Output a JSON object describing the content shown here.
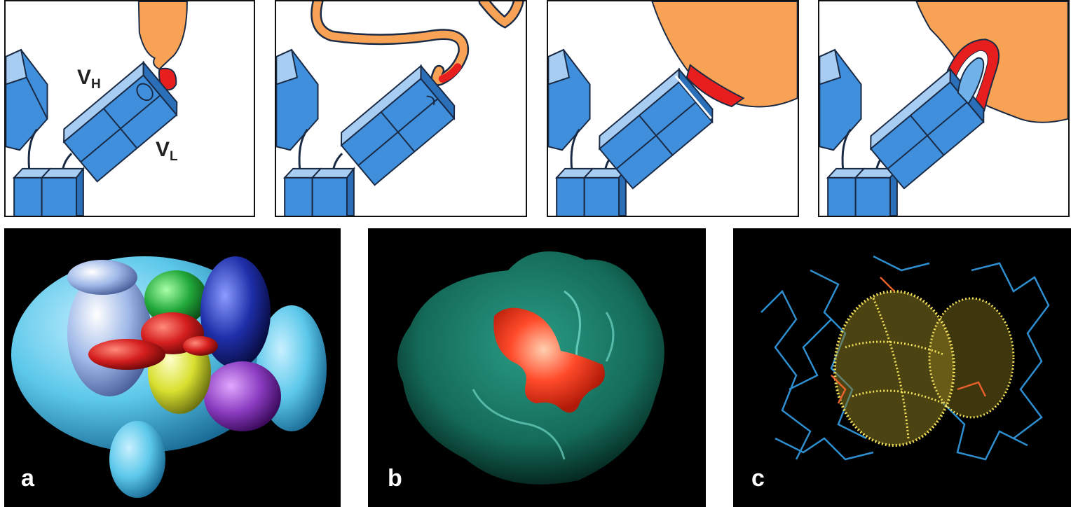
{
  "top_row": {
    "panels": [
      {
        "name": "antibody-bound-small-loop"
      },
      {
        "name": "antibody-bound-peptide"
      },
      {
        "name": "antibody-bound-surface"
      },
      {
        "name": "antibody-bound-pocket"
      }
    ],
    "labels": {
      "vh_main": "V",
      "vh_sub": "H",
      "vl_main": "V",
      "vl_sub": "L"
    }
  },
  "bottom_row": {
    "panels": [
      {
        "label": "a"
      },
      {
        "label": "b"
      },
      {
        "label": "c"
      }
    ]
  },
  "colors": {
    "antibody_fill": "#3f8fdc",
    "antibody_light": "#a8cdf2",
    "antigen": "#f7a254",
    "epitope": "#e61e1e",
    "outline": "#1a2a44",
    "cyan_atoms": "#5cc8ea",
    "surface_green": "#1c7d6a",
    "highlight_red": "#ff4a2a",
    "mesh_yellow": "#f2e05a",
    "stick_blue": "#2e8fd0"
  }
}
